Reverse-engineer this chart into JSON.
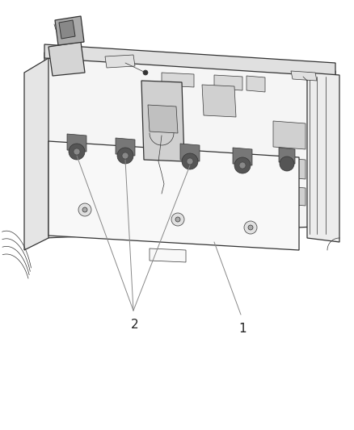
{
  "background_color": "#ffffff",
  "line_color": "#333333",
  "fill_color": "#ffffff",
  "shade_color": "#e8e8e8",
  "dark_shade": "#cccccc",
  "callout_line_color": "#888888",
  "label_1": "1",
  "label_2": "2",
  "figsize": [
    4.38,
    5.33
  ],
  "dpi": 100,
  "lw_main": 0.9,
  "lw_thin": 0.5,
  "lw_thick": 1.2
}
